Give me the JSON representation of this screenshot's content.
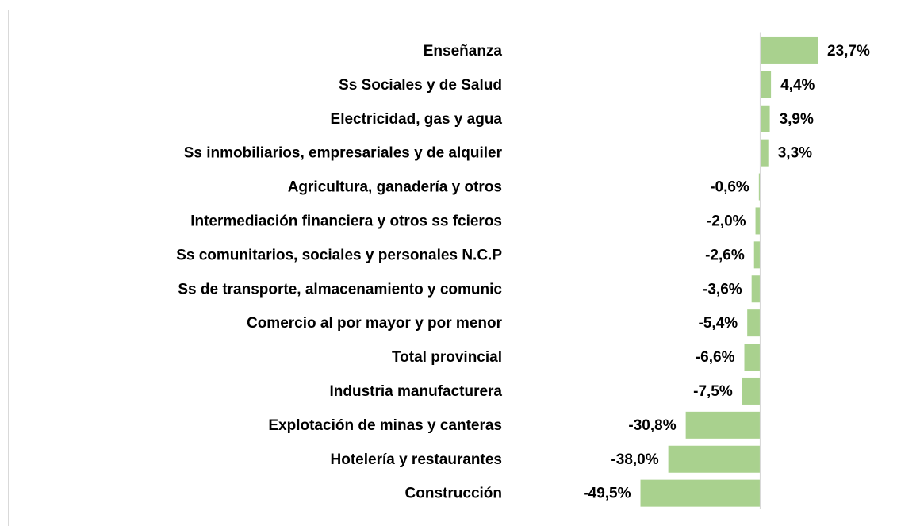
{
  "chart_data": {
    "type": "bar",
    "orientation": "horizontal",
    "categories": [
      "Enseñanza",
      "Ss Sociales y de Salud",
      "Electricidad, gas y agua",
      "Ss inmobiliarios, empresariales y de alquiler",
      "Agricultura, ganadería y otros",
      "Intermediación financiera y otros ss fcieros",
      "Ss comunitarios, sociales y personales N.C.P",
      "Ss de transporte, almacenamiento y comunic",
      "Comercio al por mayor y por menor",
      "Total provincial",
      "Industria manufacturera",
      "Explotación de minas y canteras",
      "Hotelería y restaurantes",
      "Construcción"
    ],
    "values": [
      23.7,
      4.4,
      3.9,
      3.3,
      -0.6,
      -2.0,
      -2.6,
      -3.6,
      -5.4,
      -6.6,
      -7.5,
      -30.8,
      -38.0,
      -49.5
    ],
    "value_labels": [
      "23,7%",
      "4,4%",
      "3,9%",
      "3,3%",
      "-0,6%",
      "-2,0%",
      "-2,6%",
      "-3,6%",
      "-5,4%",
      "-6,6%",
      "-7,5%",
      "-30,8%",
      "-38,0%",
      "-49,5%"
    ],
    "color": "#a9d18e",
    "xlim": [
      -50,
      25
    ]
  }
}
